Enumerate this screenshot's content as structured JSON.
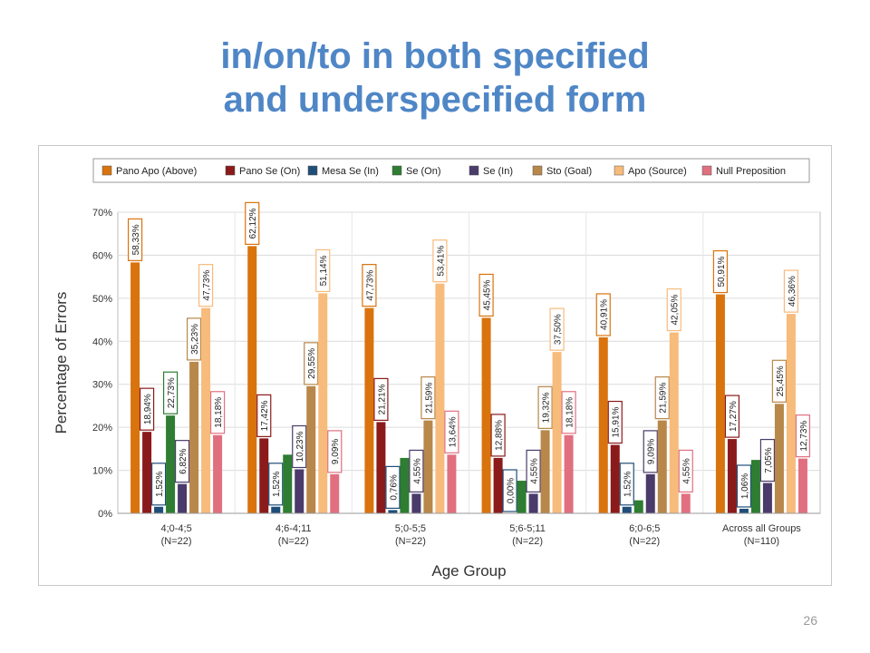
{
  "slide": {
    "title_line1": "in/on/to in both specified",
    "title_line2": "and underspecified form",
    "page_number": "26"
  },
  "chart_data": {
    "type": "bar",
    "title": "",
    "xlabel": "Age Group",
    "ylabel": "Percentage of Errors",
    "ylim": [
      0,
      70
    ],
    "yticks": [
      "0%",
      "10%",
      "20%",
      "30%",
      "40%",
      "50%",
      "60%",
      "70%"
    ],
    "grid": true,
    "legend_position": "top",
    "categories": [
      [
        "4;0-4;5",
        "(N=22)"
      ],
      [
        "4;6-4;11",
        "(N=22)"
      ],
      [
        "5;0-5;5",
        "(N=22)"
      ],
      [
        "5;6-5;11",
        "(N=22)"
      ],
      [
        "6;0-6;5",
        "(N=22)"
      ],
      [
        "Across all Groups",
        "(N=110)"
      ]
    ],
    "series": [
      {
        "name": "Pano Apo (Above)",
        "color": "#d9730d",
        "values": [
          58.33,
          62.12,
          47.73,
          45.45,
          40.91,
          50.91
        ],
        "labels": [
          "58,33%",
          "62,12%",
          "47,73%",
          "45,45%",
          "40,91%",
          "50,91%"
        ]
      },
      {
        "name": "Pano Se (On)",
        "color": "#8b1a1a",
        "values": [
          18.94,
          17.42,
          21.21,
          12.88,
          15.91,
          17.27
        ],
        "labels": [
          "18,94%",
          "17,42%",
          "21,21%",
          "12,88%",
          "15,91%",
          "17,27%"
        ]
      },
      {
        "name": "Mesa Se (In)",
        "color": "#1f4e79",
        "values": [
          1.52,
          1.52,
          0.76,
          0.0,
          1.52,
          1.06
        ],
        "labels": [
          "1,52%",
          "1,52%",
          "0,76%",
          "0,00%",
          "1,52%",
          "1,06%"
        ]
      },
      {
        "name": "Se (On)",
        "color": "#2e7d32",
        "values": [
          22.73,
          13.64,
          12.88,
          7.58,
          3.03,
          12.42
        ],
        "labels": [
          "22,73%",
          "",
          "",
          "",
          "",
          ""
        ]
      },
      {
        "name": "Se (In)",
        "color": "#4a3b6b",
        "values": [
          6.82,
          10.23,
          4.55,
          4.55,
          9.09,
          7.05
        ],
        "labels": [
          "6,82%",
          "10,23%",
          "4,55%",
          "4,55%",
          "9,09%",
          "7,05%"
        ]
      },
      {
        "name": "Sto (Goal)",
        "color": "#b8874a",
        "values": [
          35.23,
          29.55,
          21.59,
          19.32,
          21.59,
          25.45
        ],
        "labels": [
          "35,23%",
          "29,55%",
          "21,59%",
          "19,32%",
          "21,59%",
          "25,45%"
        ]
      },
      {
        "name": "Apo (Source)",
        "color": "#f7bb7c",
        "values": [
          47.73,
          51.14,
          53.41,
          37.5,
          42.05,
          46.36
        ],
        "labels": [
          "47,73%",
          "51,14%",
          "53,41%",
          "37,50%",
          "42,05%",
          "46,36%"
        ]
      },
      {
        "name": "Null Preposition",
        "color": "#e07080",
        "values": [
          18.18,
          9.09,
          13.64,
          18.18,
          4.55,
          12.73
        ],
        "labels": [
          "18,18%",
          "9,09%",
          "13,64%",
          "18,18%",
          "4,55%",
          "12,73%"
        ]
      }
    ]
  }
}
